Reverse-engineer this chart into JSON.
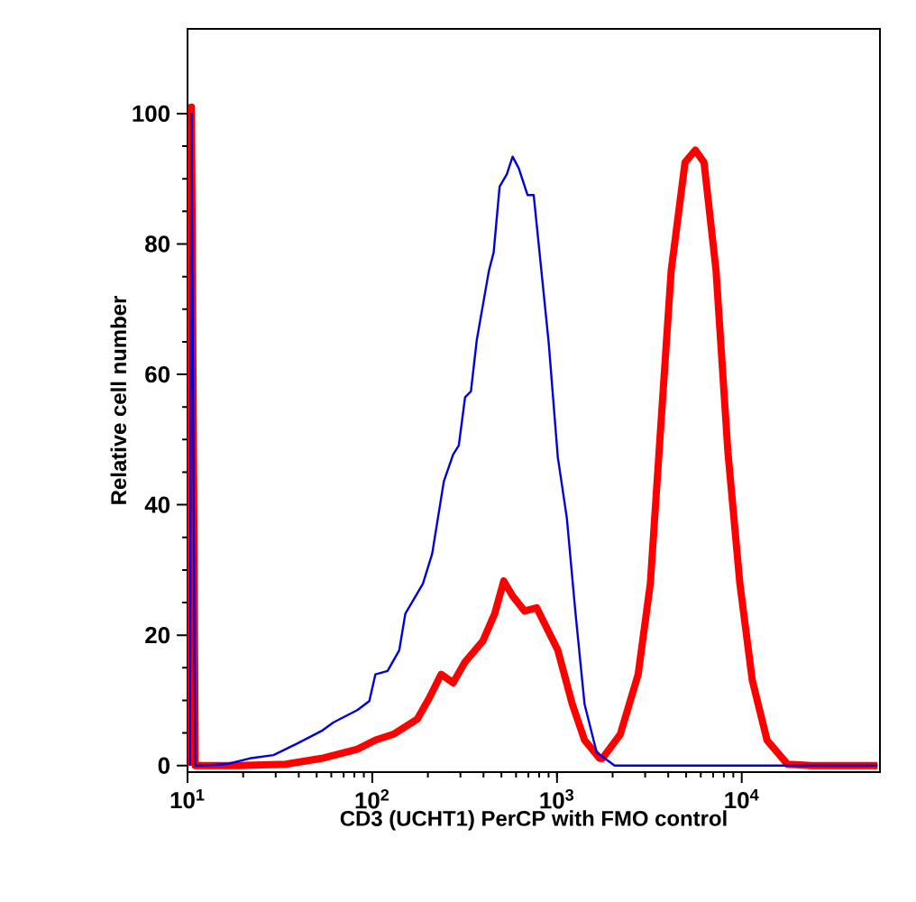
{
  "chart_data": {
    "type": "line",
    "log": "x",
    "xlabel": "CD3 (UCHT1) PerCP with FMO control",
    "ylabel": "Relative cell number",
    "xlim": [
      10,
      56000
    ],
    "ylim": [
      -1,
      113
    ],
    "xticks": [
      {
        "value": 10,
        "label": "10$^{1}$"
      },
      {
        "value": 100,
        "label": "10$^{2}$"
      },
      {
        "value": 1000,
        "label": "10$^{3}$"
      },
      {
        "value": 10000,
        "label": "10$^{4}$"
      }
    ],
    "yticks": [
      0,
      20,
      40,
      60,
      80,
      100
    ],
    "series": [
      {
        "color": "#ff0000",
        "x": [
          10.3,
          10.5,
          11.0,
          12.0,
          18.7,
          34.0,
          53.1,
          83.0,
          104,
          130,
          175,
          203,
          236,
          274,
          318,
          397,
          460,
          515,
          575,
          668,
          776,
          1010,
          1210,
          1410,
          1700,
          1760,
          2200,
          2750,
          3200,
          3570,
          4150,
          4930,
          5600,
          6250,
          7260,
          8410,
          9770,
          11400,
          13700,
          17700,
          23900,
          54300
        ],
        "values": [
          0,
          101,
          0,
          0,
          0,
          0.2,
          1.1,
          2.5,
          3.9,
          4.8,
          7.1,
          10.3,
          14.0,
          12.7,
          15.9,
          19.1,
          23.3,
          28.3,
          26.0,
          23.7,
          24.2,
          17.7,
          9.4,
          3.9,
          1.1,
          1.1,
          4.8,
          14.0,
          27.9,
          48.2,
          75.9,
          92.5,
          94.4,
          92.5,
          75.9,
          48.2,
          27.9,
          13.1,
          3.9,
          0.2,
          0,
          0
        ]
      },
      {
        "color": "#0000dd",
        "x": [
          10.3,
          10.5,
          11.0,
          12.0,
          16.2,
          21.7,
          29.2,
          39.4,
          53.1,
          61.5,
          83.0,
          96.4,
          104,
          121,
          140,
          151,
          188,
          211,
          244,
          274,
          294,
          318,
          342,
          368,
          428,
          454,
          489,
          535,
          575,
          621,
          693,
          748,
          836,
          902,
          1010,
          1130,
          1260,
          1410,
          1640,
          2050,
          54300
        ],
        "values": [
          0,
          100,
          0,
          0,
          0.2,
          1.1,
          1.6,
          3.4,
          5.3,
          6.6,
          8.5,
          9.9,
          14.0,
          14.5,
          17.7,
          23.3,
          27.9,
          32.5,
          43.6,
          47.7,
          49.1,
          56.5,
          57.4,
          65.3,
          75.9,
          78.7,
          88.8,
          90.7,
          93.4,
          91.6,
          87.5,
          87.5,
          74.0,
          64.8,
          47.3,
          38.0,
          23.3,
          9.4,
          2.0,
          0,
          0
        ]
      }
    ]
  }
}
